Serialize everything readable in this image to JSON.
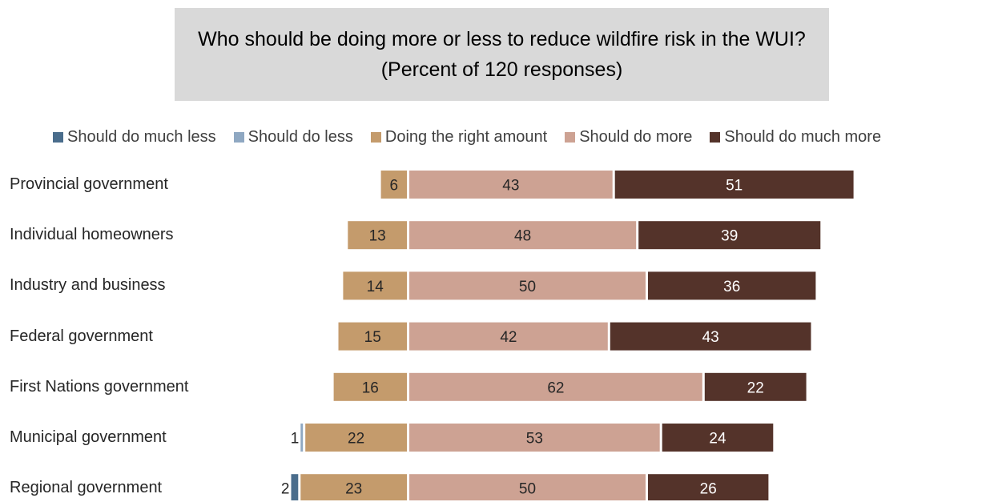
{
  "chart_data": {
    "type": "bar",
    "orientation": "horizontal",
    "stacked": true,
    "title": "Who should be doing more or less to reduce wildfire risk in the WUI?  (Percent of 120 responses)",
    "legend_position": "top",
    "categories": [
      "Provincial government",
      "Individual homeowners",
      "Industry and business",
      "Federal government",
      "First Nations government",
      "Municipal government",
      "Regional government"
    ],
    "series": [
      {
        "name": "Should do much less",
        "color": "#4a6d8c",
        "values": [
          0,
          0,
          0,
          0,
          0,
          0,
          2
        ]
      },
      {
        "name": "Should do less",
        "color": "#8fa8c2",
        "values": [
          0,
          0,
          0,
          0,
          0,
          1,
          0
        ]
      },
      {
        "name": "Doing the right amount",
        "color": "#c49b6c",
        "values": [
          6,
          13,
          14,
          15,
          16,
          22,
          23
        ]
      },
      {
        "name": "Should do more",
        "color": "#cda293",
        "values": [
          43,
          48,
          50,
          42,
          62,
          53,
          50
        ]
      },
      {
        "name": "Should do much more",
        "color": "#54332a",
        "values": [
          51,
          39,
          36,
          43,
          22,
          24,
          26
        ]
      }
    ]
  }
}
